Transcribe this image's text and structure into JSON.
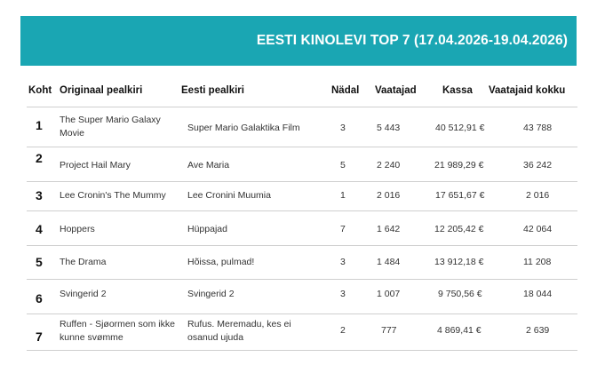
{
  "banner": {
    "title": "EESTI KINOLEVI TOP 7 (17.04.2026-19.04.2026)",
    "background": "#1aa6b3"
  },
  "table": {
    "headers": {
      "koht": "Koht",
      "original": "Originaal pealkiri",
      "eesti": "Eesti pealkiri",
      "nadal": "Nädal",
      "vaatajad": "Vaatajad",
      "kassa": "Kassa",
      "kokku": "Vaatajaid kokku"
    },
    "rows": [
      {
        "rank": "1",
        "original": "The Super Mario Galaxy Movie",
        "eesti": "Super Mario Galaktika Film",
        "week": "3",
        "viewers": "5 443",
        "box": "40 512,91 €",
        "total": "43 788"
      },
      {
        "rank": "2",
        "original": "Project Hail Mary",
        "eesti": "Ave Maria",
        "week": "5",
        "viewers": "2 240",
        "box": "21 989,29 €",
        "total": "36 242"
      },
      {
        "rank": "3",
        "original": "Lee Cronin's The Mummy",
        "eesti": "Lee Cronini Muumia",
        "week": "1",
        "viewers": "2 016",
        "box": "17 651,67 €",
        "total": "2 016"
      },
      {
        "rank": "4",
        "original": "Hoppers",
        "eesti": "Hüppajad",
        "week": "7",
        "viewers": "1 642",
        "box": "12 205,42 €",
        "total": "42 064"
      },
      {
        "rank": "5",
        "original": "The Drama",
        "eesti": "Hõissa, pulmad!",
        "week": "3",
        "viewers": "1 484",
        "box": "13 912,18 €",
        "total": "11 208"
      },
      {
        "rank": "6",
        "original": "Svingerid 2",
        "eesti": "Svingerid 2",
        "week": "3",
        "viewers": "1 007",
        "box": "9 750,56 €",
        "total": "18 044"
      },
      {
        "rank": "7",
        "original": "Ruffen - Sjøormen som ikke kunne svømme",
        "eesti": "Rufus. Meremadu, kes ei osanud ujuda",
        "week": "2",
        "viewers": "777",
        "box": "4 869,41 €",
        "total": "2 639"
      }
    ]
  }
}
